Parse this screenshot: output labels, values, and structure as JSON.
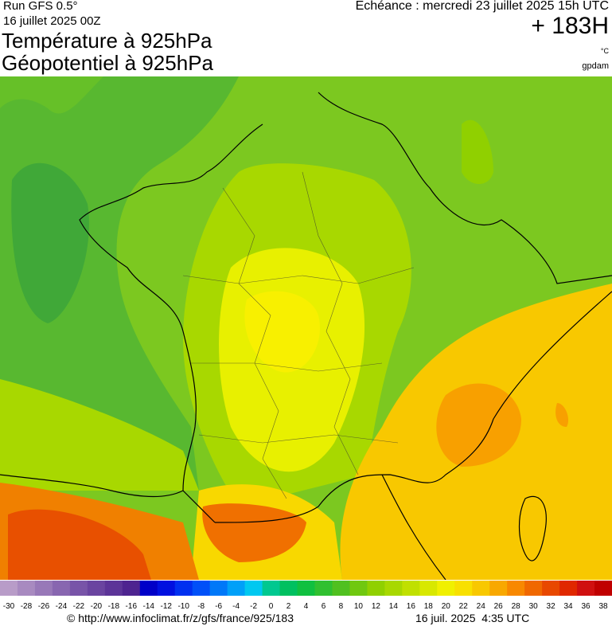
{
  "header": {
    "run": "Run GFS 0.5°",
    "date": "16 juillet 2025 00Z",
    "title1": "Température à 925hPa",
    "title2": "Géopotentiel à 925hPa",
    "echeance": "Echéance : mercredi 23 juillet 2025 15h UTC",
    "lead": "+ 183H",
    "unit": "°C",
    "unit2": "gpdam"
  },
  "legend": {
    "labels": [
      -30,
      -28,
      -26,
      -24,
      -22,
      -20,
      -18,
      -16,
      -14,
      -12,
      -10,
      -8,
      -6,
      -4,
      -2,
      0,
      2,
      4,
      6,
      8,
      10,
      12,
      14,
      16,
      18,
      20,
      22,
      24,
      26,
      28,
      30,
      32,
      34,
      36,
      38
    ],
    "colors": [
      "#b89cc8",
      "#a88ac0",
      "#9878b8",
      "#8866b0",
      "#7854a8",
      "#6a44a0",
      "#5c3498",
      "#4e2490",
      "#0000c8",
      "#0010e0",
      "#0030f0",
      "#0050f8",
      "#0078f8",
      "#00a0f8",
      "#00c8f0",
      "#00c890",
      "#00c060",
      "#10c040",
      "#30c030",
      "#50c020",
      "#70c810",
      "#90d000",
      "#a8d800",
      "#c0e000",
      "#d8e800",
      "#f0f000",
      "#f8e000",
      "#f8c800",
      "#f8a800",
      "#f88800",
      "#f06800",
      "#e84800",
      "#e02800",
      "#d01010",
      "#c00000"
    ]
  },
  "footer": {
    "url": "© http://www.infoclimat.fr/z/gfs/france/925/183",
    "stamp": "16 juil. 2025  4:35 UTC"
  }
}
